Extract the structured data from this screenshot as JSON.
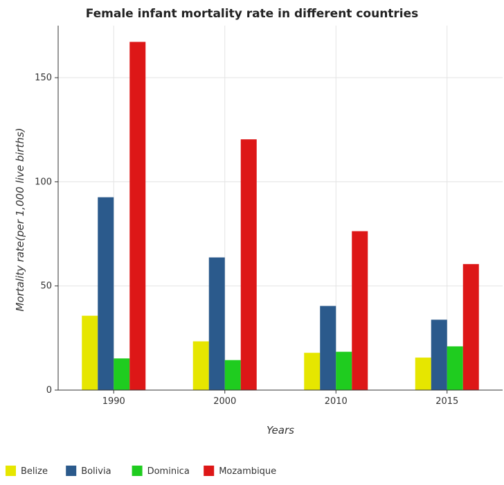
{
  "chart_data": {
    "type": "bar",
    "title": "Female infant mortality rate in different countries",
    "xlabel": "Years",
    "ylabel": "Mortality rate(per 1,000 live births)",
    "categories": [
      "1990",
      "2000",
      "2010",
      "2015"
    ],
    "ylim": [
      0,
      175
    ],
    "yticks": [
      0,
      50,
      100,
      150
    ],
    "grid": true,
    "legend_position": "bottom-left",
    "series": [
      {
        "name": "Belize",
        "color": "#e6e600",
        "values": [
          35.7,
          23.4,
          17.9,
          15.6
        ]
      },
      {
        "name": "Bolivia",
        "color": "#2b5a8c",
        "values": [
          92.6,
          63.7,
          40.4,
          33.8
        ]
      },
      {
        "name": "Dominica",
        "color": "#1fcc1f",
        "values": [
          15.2,
          14.4,
          18.4,
          21.0
        ]
      },
      {
        "name": "Mozambique",
        "color": "#dd1717",
        "values": [
          167.2,
          120.4,
          76.3,
          60.5
        ]
      }
    ]
  }
}
